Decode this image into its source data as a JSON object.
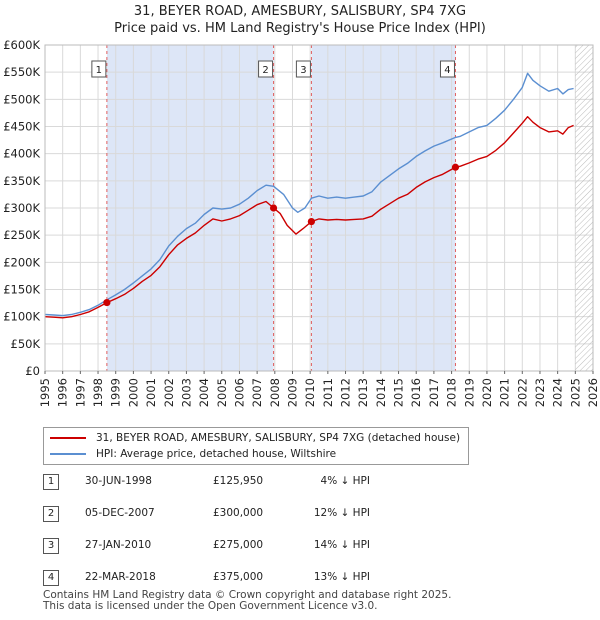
{
  "title": {
    "line1": "31, BEYER ROAD, AMESBURY, SALISBURY, SP4 7XG",
    "line2": "Price paid vs. HM Land Registry's House Price Index (HPI)"
  },
  "colors": {
    "price_line": "#cc0000",
    "hpi_line": "#5b8fd1",
    "shade": "#dde6f7",
    "grid": "#d9d9d9",
    "vline": "#e06060"
  },
  "legend": {
    "price_label": "31, BEYER ROAD, AMESBURY, SALISBURY, SP4 7XG (detached house)",
    "hpi_label": "HPI: Average price, detached house, Wiltshire"
  },
  "sales": [
    {
      "num": "1",
      "date": "30-JUN-1998",
      "price": "£125,950",
      "hpi": "4% ↓ HPI"
    },
    {
      "num": "2",
      "date": "05-DEC-2007",
      "price": "£300,000",
      "hpi": "12% ↓ HPI"
    },
    {
      "num": "3",
      "date": "27-JAN-2010",
      "price": "£275,000",
      "hpi": "14% ↓ HPI"
    },
    {
      "num": "4",
      "date": "22-MAR-2018",
      "price": "£375,000",
      "hpi": "13% ↓ HPI"
    }
  ],
  "footer": {
    "line1": "Contains HM Land Registry data © Crown copyright and database right 2025.",
    "line2": "This data is licensed under the Open Government Licence v3.0."
  },
  "chart_data": {
    "type": "line",
    "title": "Price paid vs. HM Land Registry's House Price Index (HPI)",
    "xlim": [
      1995,
      2026
    ],
    "ylim": [
      0,
      600000
    ],
    "y_ticks": [
      0,
      50000,
      100000,
      150000,
      200000,
      250000,
      300000,
      350000,
      400000,
      450000,
      500000,
      550000,
      600000
    ],
    "y_tick_labels": [
      "£0",
      "£50K",
      "£100K",
      "£150K",
      "£200K",
      "£250K",
      "£300K",
      "£350K",
      "£400K",
      "£450K",
      "£500K",
      "£550K",
      "£600K"
    ],
    "x_ticks": [
      1995,
      1996,
      1997,
      1998,
      1999,
      2000,
      2001,
      2002,
      2003,
      2004,
      2005,
      2006,
      2007,
      2008,
      2009,
      2010,
      2011,
      2012,
      2013,
      2014,
      2015,
      2016,
      2017,
      2018,
      2019,
      2020,
      2021,
      2022,
      2023,
      2024,
      2025,
      2026
    ],
    "x_tick_labels": [
      "1995",
      "1996",
      "1997",
      "1998",
      "1999",
      "2000",
      "2001",
      "2002",
      "2003",
      "2004",
      "2005",
      "2006",
      "2007",
      "2008",
      "2009",
      "2010",
      "2011",
      "2012",
      "2013",
      "2014",
      "2015",
      "2016",
      "2017",
      "2018",
      "2019",
      "2020",
      "2021",
      "2022",
      "2023",
      "2024",
      "2025",
      "2026"
    ],
    "shaded_ranges": [
      [
        1998.5,
        2007.93
      ],
      [
        2010.07,
        2018.22
      ]
    ],
    "hatch_from": 2025.0,
    "markers": [
      {
        "label": "1",
        "x": 1998.5
      },
      {
        "label": "2",
        "x": 2007.93
      },
      {
        "label": "3",
        "x": 2010.07
      },
      {
        "label": "4",
        "x": 2018.22
      }
    ],
    "sale_points": [
      {
        "x": 1998.5,
        "y": 125950
      },
      {
        "x": 2007.93,
        "y": 300000
      },
      {
        "x": 2010.07,
        "y": 275000
      },
      {
        "x": 2018.22,
        "y": 375000
      }
    ],
    "series": [
      {
        "name": "HPI: Average price, detached house, Wiltshire",
        "x": [
          1995,
          1995.5,
          1996,
          1996.5,
          1997,
          1997.5,
          1998,
          1998.5,
          1999,
          1999.5,
          2000,
          2000.5,
          2001,
          2001.5,
          2002,
          2002.5,
          2003,
          2003.5,
          2004,
          2004.5,
          2005,
          2005.5,
          2006,
          2006.5,
          2007,
          2007.5,
          2007.93,
          2008.5,
          2009,
          2009.3,
          2009.7,
          2010.07,
          2010.5,
          2011,
          2011.5,
          2012,
          2012.5,
          2013,
          2013.5,
          2014,
          2014.5,
          2015,
          2015.5,
          2016,
          2016.5,
          2017,
          2017.5,
          2018.22,
          2018.5,
          2019,
          2019.5,
          2020,
          2020.5,
          2021,
          2021.5,
          2022,
          2022.3,
          2022.6,
          2023,
          2023.5,
          2024,
          2024.3,
          2024.6,
          2024.9
        ],
        "values": [
          104000,
          103000,
          102000,
          104000,
          108000,
          113000,
          121000,
          131000,
          140000,
          150000,
          162000,
          175000,
          188000,
          205000,
          230000,
          248000,
          262000,
          272000,
          288000,
          300000,
          298000,
          300000,
          307000,
          318000,
          332000,
          342000,
          340000,
          325000,
          300000,
          292000,
          300000,
          318000,
          322000,
          318000,
          320000,
          318000,
          320000,
          322000,
          330000,
          348000,
          360000,
          372000,
          382000,
          395000,
          405000,
          414000,
          420000,
          430000,
          432000,
          440000,
          448000,
          452000,
          465000,
          480000,
          500000,
          522000,
          548000,
          535000,
          525000,
          515000,
          520000,
          510000,
          518000,
          520000
        ]
      },
      {
        "name": "31, BEYER ROAD, AMESBURY, SALISBURY, SP4 7XG (detached house)",
        "x": [
          1995,
          1995.5,
          1996,
          1996.5,
          1997,
          1997.5,
          1998,
          1998.5,
          1999,
          1999.5,
          2000,
          2000.5,
          2001,
          2001.5,
          2002,
          2002.5,
          2003,
          2003.5,
          2004,
          2004.5,
          2005,
          2005.5,
          2006,
          2006.5,
          2007,
          2007.5,
          2007.93,
          2008.3,
          2008.7,
          2009.2,
          2009.6,
          2010.07,
          2010.5,
          2011,
          2011.5,
          2012,
          2012.5,
          2013,
          2013.5,
          2014,
          2014.5,
          2015,
          2015.5,
          2016,
          2016.5,
          2017,
          2017.5,
          2018.22,
          2018.5,
          2019,
          2019.5,
          2020,
          2020.5,
          2021,
          2021.5,
          2022,
          2022.3,
          2022.6,
          2023,
          2023.5,
          2024,
          2024.3,
          2024.6,
          2024.9
        ],
        "values": [
          100000,
          99000,
          98000,
          100000,
          104000,
          109000,
          117000,
          125950,
          133000,
          141000,
          152000,
          165000,
          176000,
          192000,
          214000,
          232000,
          244000,
          254000,
          268000,
          280000,
          276000,
          280000,
          286000,
          296000,
          306000,
          312000,
          300000,
          290000,
          268000,
          252000,
          262000,
          275000,
          280000,
          278000,
          279000,
          278000,
          279000,
          280000,
          285000,
          298000,
          308000,
          318000,
          325000,
          338000,
          348000,
          356000,
          362000,
          375000,
          377000,
          383000,
          390000,
          395000,
          406000,
          420000,
          438000,
          456000,
          468000,
          458000,
          448000,
          440000,
          442000,
          436000,
          448000,
          452000
        ]
      }
    ]
  }
}
